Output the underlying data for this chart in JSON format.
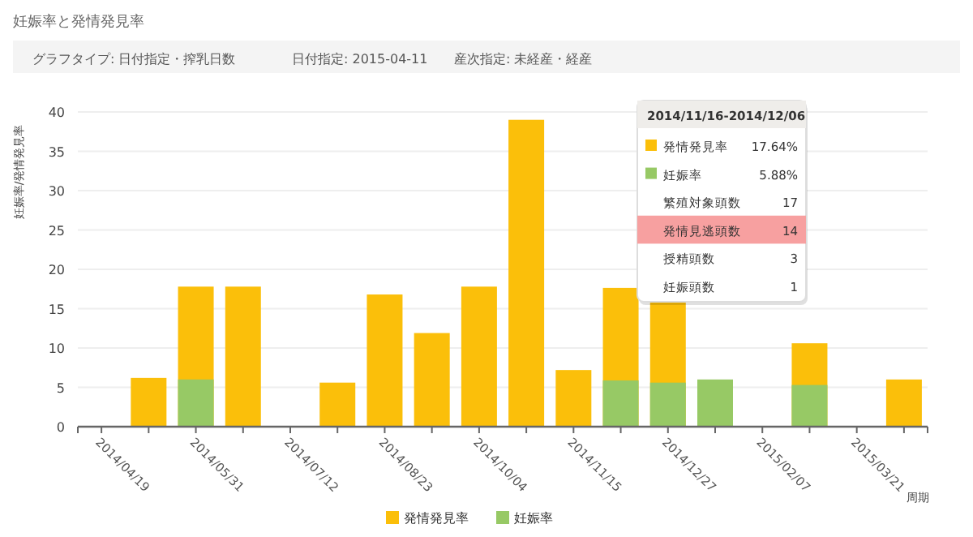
{
  "chart_data": {
    "type": "bar",
    "title": "妊娠率と発情発見率",
    "ylabel": "妊娠率/発情発見率",
    "xlabel": "周期",
    "annotations": [
      "グラフタイプ: 日付指定・搾乳日数",
      "日付指定: 2015-04-11",
      "産次指定: 未経産・経産",
      "2014/11/16-2014/12/06",
      "発情発見率",
      "17.64%",
      "妊娠率",
      "5.88%",
      "繁殖対象頭数",
      "17",
      "発情見逃頭数",
      "14",
      "授精頭数",
      "3",
      "妊娠頭数",
      "1"
    ],
    "categories": [
      "2014/04/19",
      null,
      "2014/05/31",
      null,
      "2014/07/12",
      null,
      "2014/08/23",
      null,
      "2014/10/04",
      null,
      "2014/11/15",
      null,
      "2014/12/27",
      null,
      "2015/02/07",
      null,
      "2015/03/21",
      null
    ],
    "series": [
      {
        "name": "発情発見率",
        "color": "#fbbf0a",
        "values": [
          null,
          6.2,
          17.8,
          17.8,
          null,
          5.6,
          16.8,
          11.9,
          17.8,
          39,
          7.2,
          17.64,
          16,
          null,
          null,
          10.6,
          null,
          6
        ]
      },
      {
        "name": "妊娠率",
        "color": "#97c965",
        "values": [
          null,
          null,
          6,
          null,
          null,
          null,
          null,
          null,
          null,
          null,
          null,
          5.88,
          5.6,
          6,
          null,
          5.3,
          null,
          null
        ]
      }
    ],
    "ylim": [
      0,
      40
    ],
    "yticks": [
      0,
      5,
      10,
      15,
      20,
      25,
      30,
      35,
      40
    ],
    "grid": "y",
    "legend": "bottom"
  }
}
